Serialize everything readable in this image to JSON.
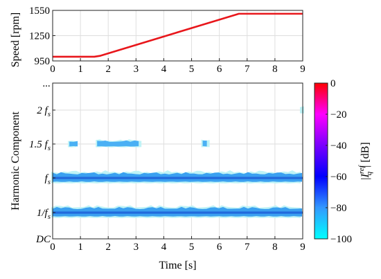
{
  "chart_data": [
    {
      "type": "line",
      "xlabel": "",
      "ylabel": "Speed [rpm]",
      "xlim": [
        0,
        9
      ],
      "ylim": [
        950,
        1550
      ],
      "xticks": [
        "0",
        "1",
        "2",
        "3",
        "4",
        "5",
        "6",
        "7",
        "8",
        "9"
      ],
      "yticks": [
        "950",
        "1250",
        "1550"
      ],
      "grid": true,
      "series": [
        {
          "color": "#e8161b",
          "x": [
            0,
            1.5,
            1.7,
            6.6,
            6.7,
            9
          ],
          "y": [
            1000,
            1000,
            1010,
            1500,
            1510,
            1510
          ]
        }
      ]
    },
    {
      "type": "heatmap",
      "xlabel": "Time [s]",
      "ylabel": "Harmonic Component",
      "xlim": [
        0,
        9
      ],
      "xticks": [
        "0",
        "1",
        "2",
        "3",
        "4",
        "5",
        "6",
        "7",
        "8",
        "9"
      ],
      "yticks": [
        "DC",
        "1/f",
        "f",
        "1.5 f",
        "2 f",
        "..."
      ],
      "ytick_subscript": "s",
      "grid": true,
      "colorbar": {
        "label": "|I_q^ref| [dB]",
        "label_main": "|",
        "label_sym": "I",
        "label_sup": "ref",
        "label_sub": "q",
        "label_tail": "| [dB]",
        "ticks": [
          "0",
          "−20",
          "−40",
          "−60",
          "−80",
          "−100"
        ],
        "range": [
          -100,
          0
        ],
        "colors": [
          "#00ffff",
          "#3399ff",
          "#0000ff",
          "#7a00ff",
          "#ff00ff",
          "#ff0000"
        ]
      },
      "bands": [
        {
          "component": "1/f",
          "x_range": [
            0,
            9
          ],
          "level_db": -82,
          "color": "#3aa0f0"
        },
        {
          "component": "f",
          "x_range": [
            0,
            9
          ],
          "level_db": -82,
          "color": "#3aa0f0"
        },
        {
          "component": "1.5 f",
          "segments": [
            [
              0.6,
              0.9
            ],
            [
              1.6,
              3.2
            ],
            [
              5.4,
              5.6
            ]
          ],
          "level_db": -85,
          "color": "#4ab0f4"
        },
        {
          "component": "2 f",
          "segments": [
            [
              8.95,
              9
            ]
          ],
          "level_db": -85,
          "color": "#4ab0f4"
        }
      ]
    }
  ]
}
